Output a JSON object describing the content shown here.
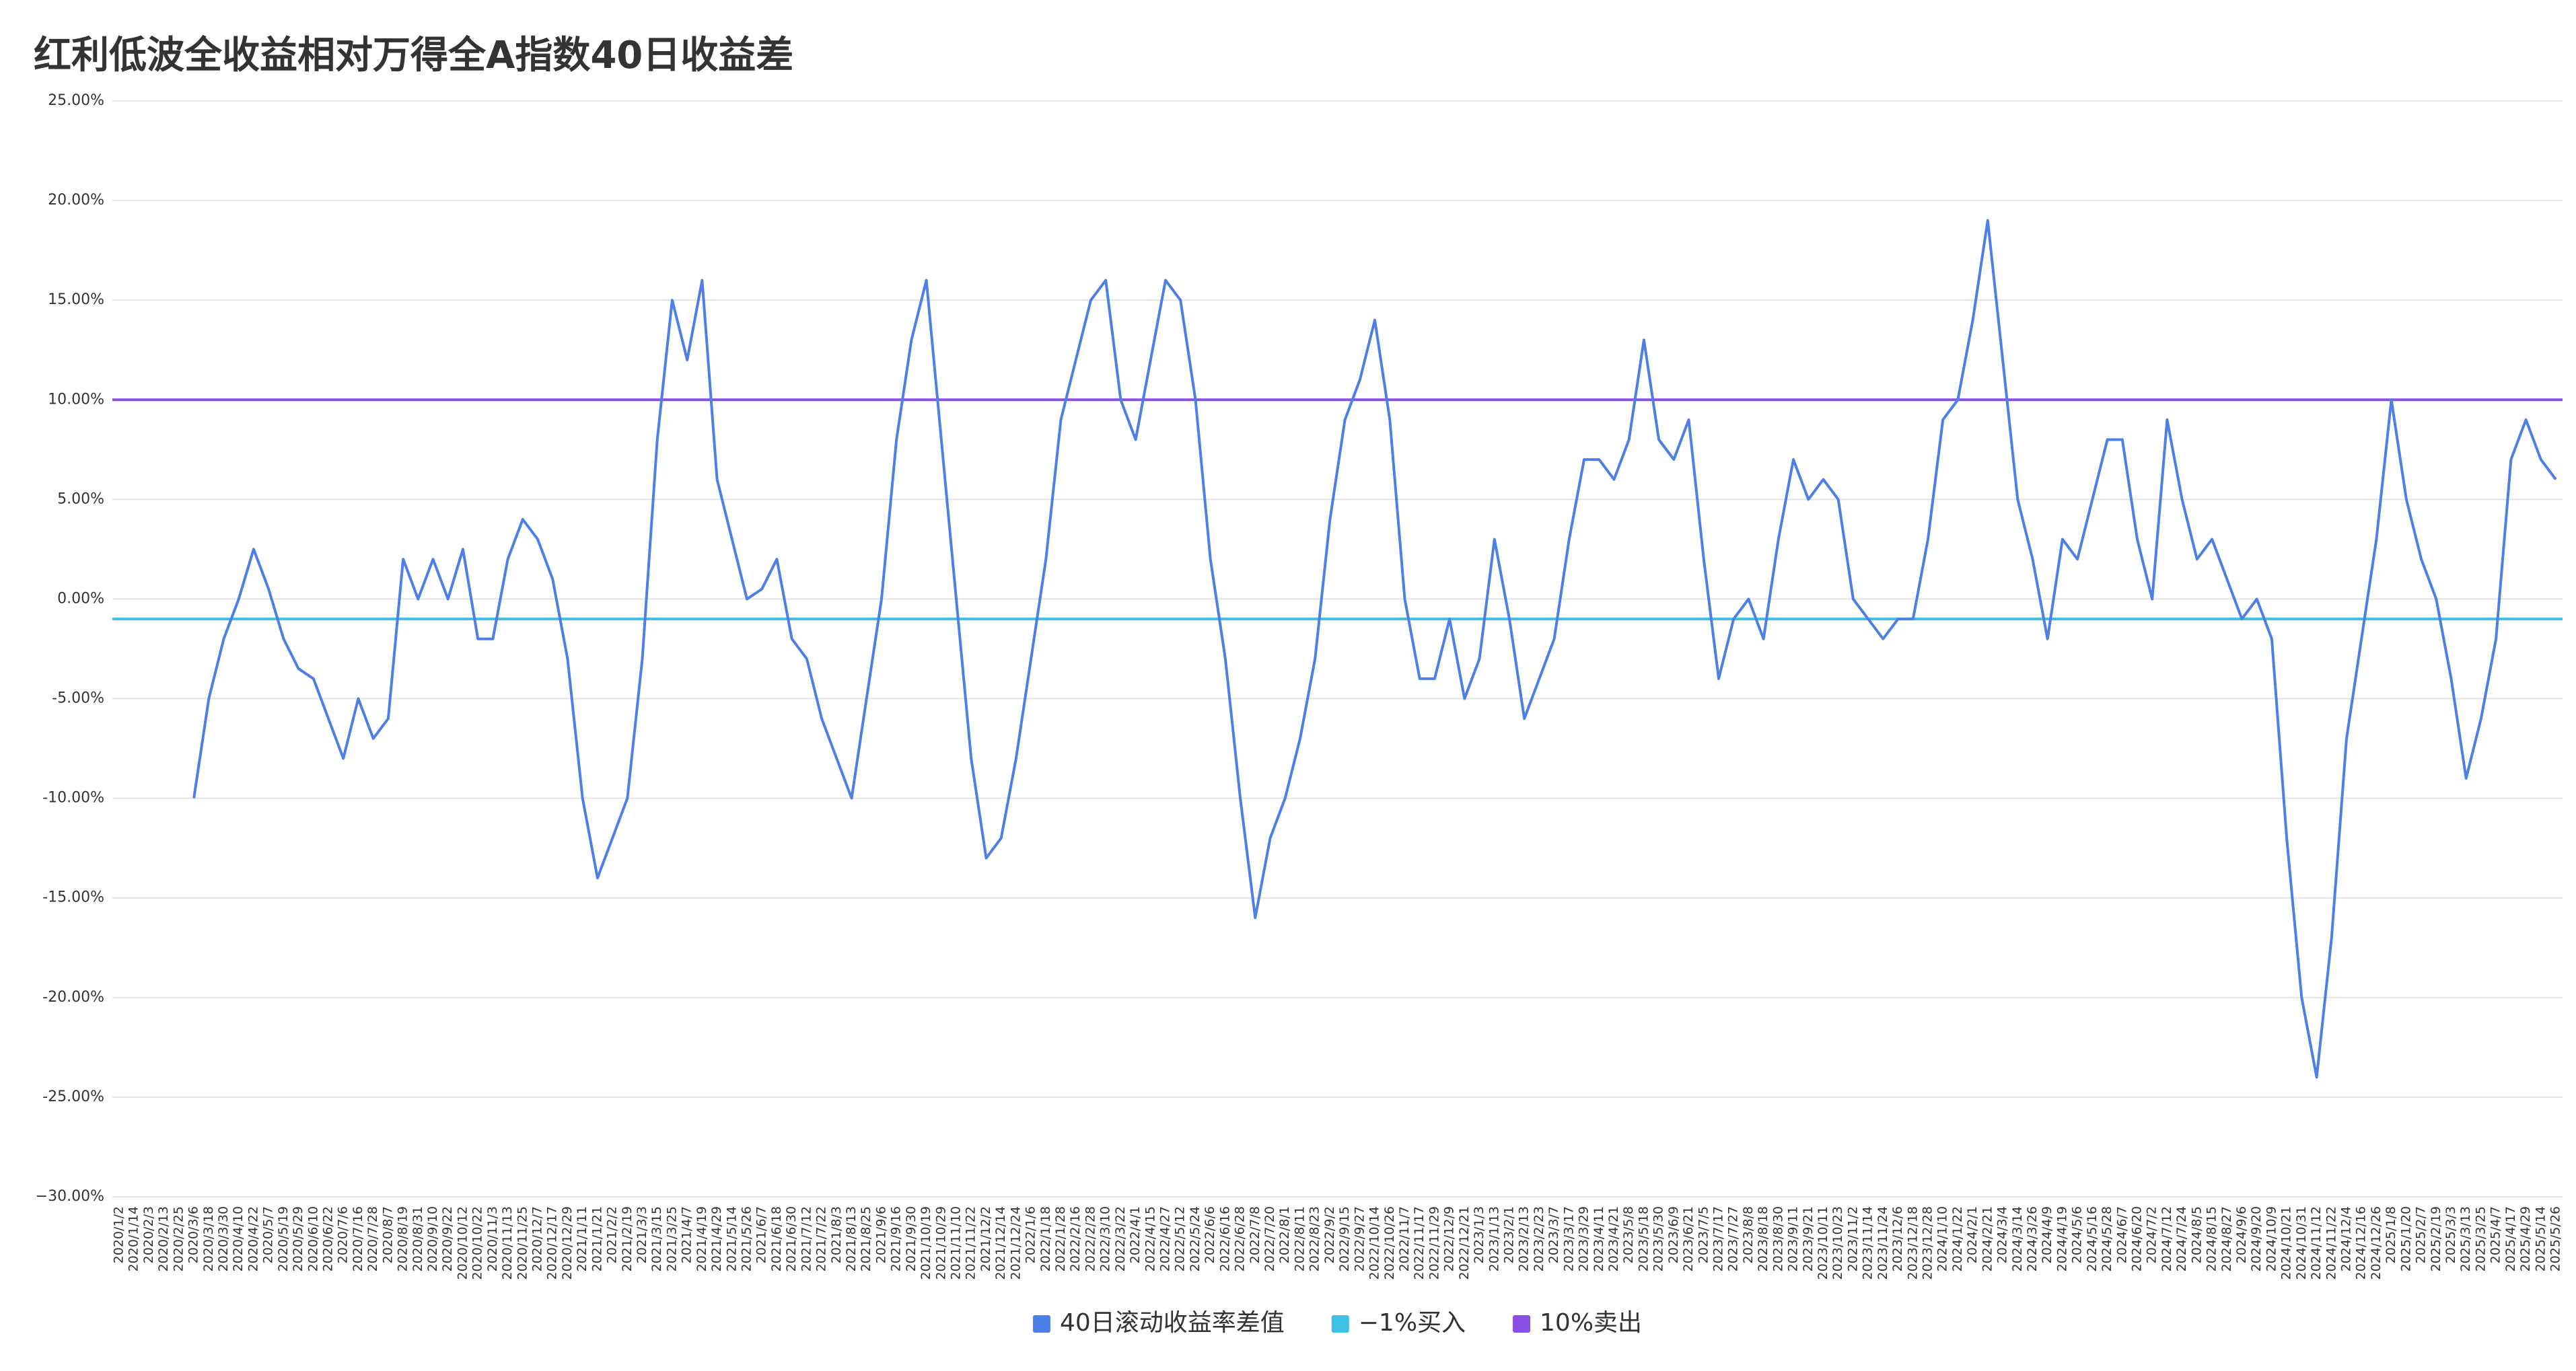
{
  "chart_data": {
    "type": "line",
    "title": "红利低波全收益相对万得全A指数40日收益差",
    "categories": [
      "2020/1/2",
      "2020/1/14",
      "2020/2/3",
      "2020/2/13",
      "2020/2/25",
      "2020/3/6",
      "2020/3/18",
      "2020/3/30",
      "2020/4/10",
      "2020/4/22",
      "2020/5/7",
      "2020/5/19",
      "2020/5/29",
      "2020/6/10",
      "2020/6/22",
      "2020/7/6",
      "2020/7/16",
      "2020/7/28",
      "2020/8/7",
      "2020/8/19",
      "2020/8/31",
      "2020/9/10",
      "2020/9/22",
      "2020/10/12",
      "2020/10/22",
      "2020/11/3",
      "2020/11/13",
      "2020/11/25",
      "2020/12/7",
      "2020/12/17",
      "2020/12/29",
      "2021/1/11",
      "2021/1/21",
      "2021/2/2",
      "2021/2/19",
      "2021/3/3",
      "2021/3/15",
      "2021/3/25",
      "2021/4/7",
      "2021/4/19",
      "2021/4/29",
      "2021/5/14",
      "2021/5/26",
      "2021/6/7",
      "2021/6/18",
      "2021/6/30",
      "2021/7/12",
      "2021/7/22",
      "2021/8/3",
      "2021/8/13",
      "2021/8/25",
      "2021/9/6",
      "2021/9/16",
      "2021/9/30",
      "2021/10/19",
      "2021/10/29",
      "2021/11/10",
      "2021/11/22",
      "2021/12/2",
      "2021/12/14",
      "2021/12/24",
      "2022/1/6",
      "2022/1/18",
      "2022/1/28",
      "2022/2/16",
      "2022/2/28",
      "2022/3/10",
      "2022/3/22",
      "2022/4/1",
      "2022/4/15",
      "2022/4/27",
      "2022/5/12",
      "2022/5/24",
      "2022/6/6",
      "2022/6/16",
      "2022/6/28",
      "2022/7/8",
      "2022/7/20",
      "2022/8/1",
      "2022/8/11",
      "2022/8/23",
      "2022/9/2",
      "2022/9/15",
      "2022/9/27",
      "2022/10/14",
      "2022/10/26",
      "2022/11/7",
      "2022/11/17",
      "2022/11/29",
      "2022/12/9",
      "2022/12/21",
      "2023/1/3",
      "2023/1/13",
      "2023/2/1",
      "2023/2/13",
      "2023/2/23",
      "2023/3/7",
      "2023/3/17",
      "2023/3/29",
      "2023/4/11",
      "2023/4/21",
      "2023/5/8",
      "2023/5/18",
      "2023/5/30",
      "2023/6/9",
      "2023/6/21",
      "2023/7/5",
      "2023/7/17",
      "2023/7/27",
      "2023/8/8",
      "2023/8/18",
      "2023/8/30",
      "2023/9/11",
      "2023/9/21",
      "2023/10/11",
      "2023/10/23",
      "2023/11/2",
      "2023/11/14",
      "2023/11/24",
      "2023/12/6",
      "2023/12/18",
      "2023/12/28",
      "2024/1/10",
      "2024/1/22",
      "2024/2/1",
      "2024/2/21",
      "2024/3/4",
      "2024/3/14",
      "2024/3/26",
      "2024/4/9",
      "2024/4/19",
      "2024/5/6",
      "2024/5/16",
      "2024/5/28",
      "2024/6/7",
      "2024/6/20",
      "2024/7/2",
      "2024/7/12",
      "2024/7/24",
      "2024/8/5",
      "2024/8/15",
      "2024/8/27",
      "2024/9/6",
      "2024/9/20",
      "2024/10/9",
      "2024/10/21",
      "2024/10/31",
      "2024/11/12",
      "2024/11/22",
      "2024/12/4",
      "2024/12/16",
      "2024/12/26",
      "2025/1/8",
      "2025/1/20",
      "2025/2/7",
      "2025/2/19",
      "2025/3/3",
      "2025/3/13",
      "2025/3/25",
      "2025/4/7",
      "2025/4/17",
      "2025/4/29",
      "2025/5/14",
      "2025/5/26"
    ],
    "series": [
      {
        "name": "40日滚动收益率差值",
        "color": "#4e7fe6",
        "values": [
          null,
          null,
          null,
          null,
          null,
          -10,
          -5,
          -2,
          0,
          2.5,
          0.5,
          -2,
          -3.5,
          -4,
          -6,
          -8,
          -5,
          -7,
          -6,
          2,
          0,
          2,
          0,
          2.5,
          -2,
          -2,
          2,
          4,
          3,
          1,
          -3,
          -10,
          -14,
          -12,
          -10,
          -3,
          8,
          15,
          12,
          16,
          6,
          3,
          0,
          0.5,
          2,
          -2,
          -3,
          -6,
          -8,
          -10,
          -5,
          0,
          8,
          13,
          16,
          8,
          0,
          -8,
          -13,
          -12,
          -8,
          -3,
          2,
          9,
          12,
          15,
          16,
          10,
          8,
          12,
          16,
          15,
          10,
          2,
          -3,
          -10,
          -16,
          -12,
          -10,
          -7,
          -3,
          4,
          9,
          11,
          14,
          9,
          0,
          -4,
          -4,
          -1,
          -5,
          -3,
          3,
          -1,
          -6,
          -4,
          -2,
          3,
          7,
          7,
          6,
          8,
          13,
          8,
          7,
          9,
          2,
          -4,
          -1,
          0,
          -2,
          3,
          7,
          5,
          6,
          5,
          0,
          -1,
          -2,
          -1,
          -1,
          3,
          9,
          10,
          14,
          19,
          12,
          5,
          2,
          -2,
          3,
          2,
          5,
          8,
          8,
          3,
          0,
          9,
          5,
          2,
          3,
          1,
          -1,
          0,
          -2,
          -12,
          -20,
          -24,
          -17,
          -7,
          -2,
          3,
          10,
          5,
          2,
          0,
          -4,
          -9,
          -6,
          -2,
          7,
          9,
          7,
          6
        ]
      }
    ],
    "reference_lines": [
      {
        "name": "−1%买入",
        "value": -1,
        "color": "#3fbfe3"
      },
      {
        "name": "10%卖出",
        "value": 10,
        "color": "#8b4fe6"
      }
    ],
    "ylim": [
      -30,
      25
    ],
    "yticks": [
      {
        "value": -30,
        "label": "−30.00%"
      },
      {
        "value": -25,
        "label": "-25.00%"
      },
      {
        "value": -20,
        "label": "-20.00%"
      },
      {
        "value": -15,
        "label": "-15.00%"
      },
      {
        "value": -10,
        "label": "-10.00%"
      },
      {
        "value": -5,
        "label": "-5.00%"
      },
      {
        "value": 0,
        "label": "0.00%"
      },
      {
        "value": 5,
        "label": "5.00%"
      },
      {
        "value": 10,
        "label": "10.00%"
      },
      {
        "value": 15,
        "label": "15.00%"
      },
      {
        "value": 20,
        "label": "20.00%"
      },
      {
        "value": 25,
        "label": "25.00%"
      }
    ],
    "grid": true,
    "legend": "bottom"
  }
}
